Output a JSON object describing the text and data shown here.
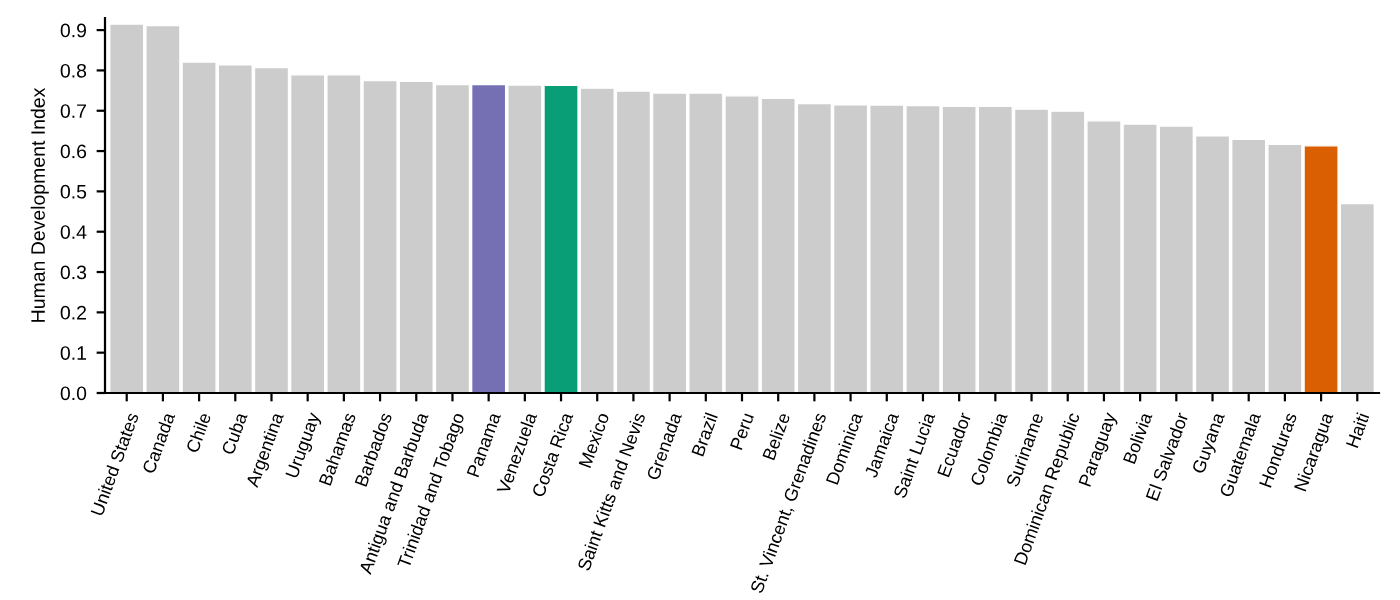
{
  "chart_data": {
    "type": "bar",
    "ylabel": "Human Development Index",
    "categories": [
      "United States",
      "Canada",
      "Chile",
      "Cuba",
      "Argentina",
      "Uruguay",
      "Bahamas",
      "Barbados",
      "Antigua and Barbuda",
      "Trinidad and Tobago",
      "Panama",
      "Venezuela",
      "Costa Rica",
      "Mexico",
      "Saint Kitts and Nevis",
      "Grenada",
      "Brazil",
      "Peru",
      "Belize",
      "St. Vincent, Grenadines",
      "Dominica",
      "Jamaica",
      "Saint Lucia",
      "Ecuador",
      "Colombia",
      "Suriname",
      "Dominican Republic",
      "Paraguay",
      "Bolivia",
      "El Salvador",
      "Guyana",
      "Guatemala",
      "Honduras",
      "Nicaragua",
      "Haiti"
    ],
    "values": [
      0.915,
      0.911,
      0.821,
      0.814,
      0.807,
      0.789,
      0.789,
      0.775,
      0.773,
      0.765,
      0.765,
      0.764,
      0.763,
      0.756,
      0.749,
      0.744,
      0.744,
      0.737,
      0.731,
      0.718,
      0.715,
      0.714,
      0.713,
      0.711,
      0.711,
      0.704,
      0.699,
      0.675,
      0.667,
      0.662,
      0.638,
      0.629,
      0.617,
      0.613,
      0.47
    ],
    "colors": [
      "#cccccc",
      "#cccccc",
      "#cccccc",
      "#cccccc",
      "#cccccc",
      "#cccccc",
      "#cccccc",
      "#cccccc",
      "#cccccc",
      "#cccccc",
      "#7570b3",
      "#cccccc",
      "#0a9e76",
      "#cccccc",
      "#cccccc",
      "#cccccc",
      "#cccccc",
      "#cccccc",
      "#cccccc",
      "#cccccc",
      "#cccccc",
      "#cccccc",
      "#cccccc",
      "#cccccc",
      "#cccccc",
      "#cccccc",
      "#cccccc",
      "#cccccc",
      "#cccccc",
      "#cccccc",
      "#cccccc",
      "#cccccc",
      "#cccccc",
      "#d95f02",
      "#cccccc"
    ],
    "ylim": [
      0,
      0.93
    ],
    "yticks": [
      {
        "value": 0,
        "label": "0.0"
      },
      {
        "value": 0.1,
        "label": "0.1"
      },
      {
        "value": 0.2,
        "label": "0.2"
      },
      {
        "value": 0.3,
        "label": "0.3"
      },
      {
        "value": 0.4,
        "label": "0.4"
      },
      {
        "value": 0.5,
        "label": "0.5"
      },
      {
        "value": 0.6,
        "label": "0.6"
      },
      {
        "value": 0.7,
        "label": "0.7"
      },
      {
        "value": 0.8,
        "label": "0.8"
      },
      {
        "value": 0.9,
        "label": "0.9"
      }
    ],
    "grid": false,
    "legend": false
  }
}
